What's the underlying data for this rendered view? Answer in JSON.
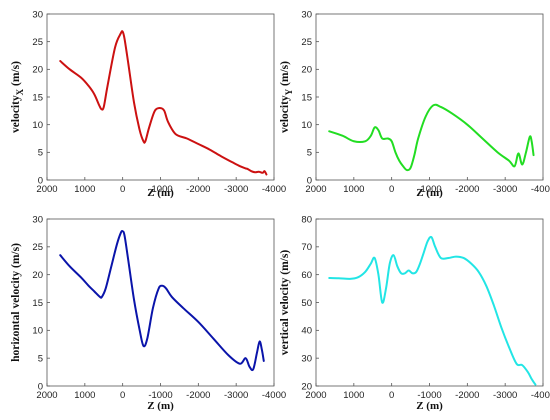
{
  "chart_data": [
    {
      "type": "line",
      "ylabel": "velocity_X (m/s)",
      "ylabel_main": "velocity",
      "ylabel_sub": "X",
      "ylabel_unit": " (m/s)",
      "xlabel": "Z (m)",
      "xlim": [
        2000,
        -4000
      ],
      "ylim": [
        0,
        30
      ],
      "xticks": [
        2000,
        1000,
        0,
        -1000,
        -2000,
        -3000,
        -4000
      ],
      "yticks": [
        0,
        5,
        10,
        15,
        20,
        25,
        30
      ],
      "color": "#cc1111",
      "series": [
        {
          "x": [
            1650,
            1400,
            1100,
            900,
            750,
            620,
            560,
            500,
            400,
            200,
            50,
            0,
            -50,
            -150,
            -300,
            -450,
            -550,
            -600,
            -700,
            -850,
            -1000,
            -1100,
            -1200,
            -1400,
            -1700,
            -2000,
            -2300,
            -2600,
            -2900,
            -3100,
            -3250,
            -3300,
            -3400,
            -3500,
            -3600,
            -3700,
            -3750,
            -3800
          ],
          "y": [
            21.5,
            20,
            18.5,
            17,
            15.5,
            13.5,
            12.8,
            13.2,
            17,
            24,
            26.5,
            26.8,
            25.5,
            21,
            14,
            9,
            7,
            7,
            9.5,
            12.5,
            13,
            12.5,
            10.5,
            8.3,
            7.5,
            6.5,
            5.5,
            4.3,
            3.2,
            2.5,
            2.1,
            2.0,
            1.6,
            1.4,
            1.5,
            1.3,
            1.6,
            1.0
          ]
        }
      ]
    },
    {
      "type": "line",
      "ylabel": "velocity_Y (m/s)",
      "ylabel_main": "velocity",
      "ylabel_sub": "Y",
      "ylabel_unit": " (m/s)",
      "xlabel": "Z (m)",
      "xlim": [
        2000,
        -4000
      ],
      "ylim": [
        0,
        30
      ],
      "xticks": [
        2000,
        1000,
        0,
        -1000,
        -2000,
        -3000,
        -4000
      ],
      "yticks": [
        0,
        5,
        10,
        15,
        20,
        25,
        30
      ],
      "color": "#22dd22",
      "series": [
        {
          "x": [
            1650,
            1300,
            1000,
            700,
            550,
            450,
            350,
            250,
            100,
            0,
            -100,
            -200,
            -300,
            -400,
            -500,
            -600,
            -700,
            -900,
            -1100,
            -1300,
            -1600,
            -2000,
            -2400,
            -2800,
            -3100,
            -3250,
            -3350,
            -3450,
            -3550,
            -3650,
            -3700,
            -3750
          ],
          "y": [
            8.8,
            8,
            7,
            7,
            8,
            9.5,
            9,
            7.5,
            7.5,
            7,
            5,
            3.5,
            2.5,
            1.8,
            2.2,
            4.5,
            7.5,
            11.5,
            13.5,
            13.2,
            12,
            10,
            7.5,
            5,
            3.5,
            2.5,
            4.8,
            2.8,
            5,
            7.8,
            7,
            4.5
          ]
        }
      ]
    },
    {
      "type": "line",
      "ylabel": "horizontal velocity (m/s)",
      "ylabel_main": "horizontal velocity (m/s)",
      "ylabel_sub": "",
      "ylabel_unit": "",
      "xlabel": "Z (m)",
      "xlim": [
        2000,
        -4000
      ],
      "ylim": [
        0,
        30
      ],
      "xticks": [
        2000,
        1000,
        0,
        -1000,
        -2000,
        -3000,
        -4000
      ],
      "yticks": [
        0,
        5,
        10,
        15,
        20,
        25,
        30
      ],
      "color": "#0a14aa",
      "series": [
        {
          "x": [
            1650,
            1400,
            1100,
            900,
            750,
            600,
            550,
            450,
            300,
            150,
            50,
            0,
            -50,
            -150,
            -300,
            -450,
            -550,
            -650,
            -800,
            -950,
            -1050,
            -1150,
            -1300,
            -1600,
            -2000,
            -2400,
            -2800,
            -3100,
            -3250,
            -3350,
            -3450,
            -3550,
            -3620,
            -3680,
            -3730
          ],
          "y": [
            23.5,
            21.5,
            19.5,
            18,
            17,
            16,
            16,
            17.5,
            21.5,
            25.5,
            27.5,
            27.8,
            27,
            22.5,
            15.5,
            10,
            7.2,
            8.5,
            14,
            17.5,
            18,
            17.5,
            16,
            14,
            11.5,
            8.5,
            5.5,
            4,
            5,
            3.5,
            3,
            6,
            8,
            6.5,
            4.5
          ]
        }
      ]
    },
    {
      "type": "line",
      "ylabel": "vertical velocity (m/s)",
      "ylabel_main": "vertical velocity (m/s)",
      "ylabel_sub": "",
      "ylabel_unit": "",
      "xlabel": "Z (m)",
      "xlim": [
        2000,
        -4000
      ],
      "ylim": [
        20,
        80
      ],
      "xticks": [
        2000,
        1000,
        0,
        -1000,
        -2000,
        -3000,
        -4000
      ],
      "yticks": [
        20,
        30,
        40,
        50,
        60,
        70,
        80
      ],
      "color": "#22e5e5",
      "series": [
        {
          "x": [
            1650,
            1400,
            1100,
            900,
            700,
            550,
            450,
            350,
            250,
            150,
            50,
            -50,
            -150,
            -250,
            -350,
            -450,
            -550,
            -650,
            -750,
            -850,
            -950,
            -1050,
            -1150,
            -1300,
            -1500,
            -1700,
            -1900,
            -2100,
            -2300,
            -2500,
            -2700,
            -2900,
            -3100,
            -3300,
            -3450,
            -3600,
            -3700,
            -3800
          ],
          "y": [
            58.8,
            58.7,
            58.5,
            59,
            61,
            64,
            66,
            60,
            50,
            55,
            64,
            67,
            63,
            60.5,
            60.5,
            61.5,
            60.5,
            61,
            64,
            68,
            72,
            73.5,
            70,
            66,
            66,
            66.5,
            66,
            64,
            61,
            56,
            49,
            41,
            34,
            28,
            27.5,
            25,
            22.5,
            20.5
          ]
        }
      ]
    }
  ]
}
